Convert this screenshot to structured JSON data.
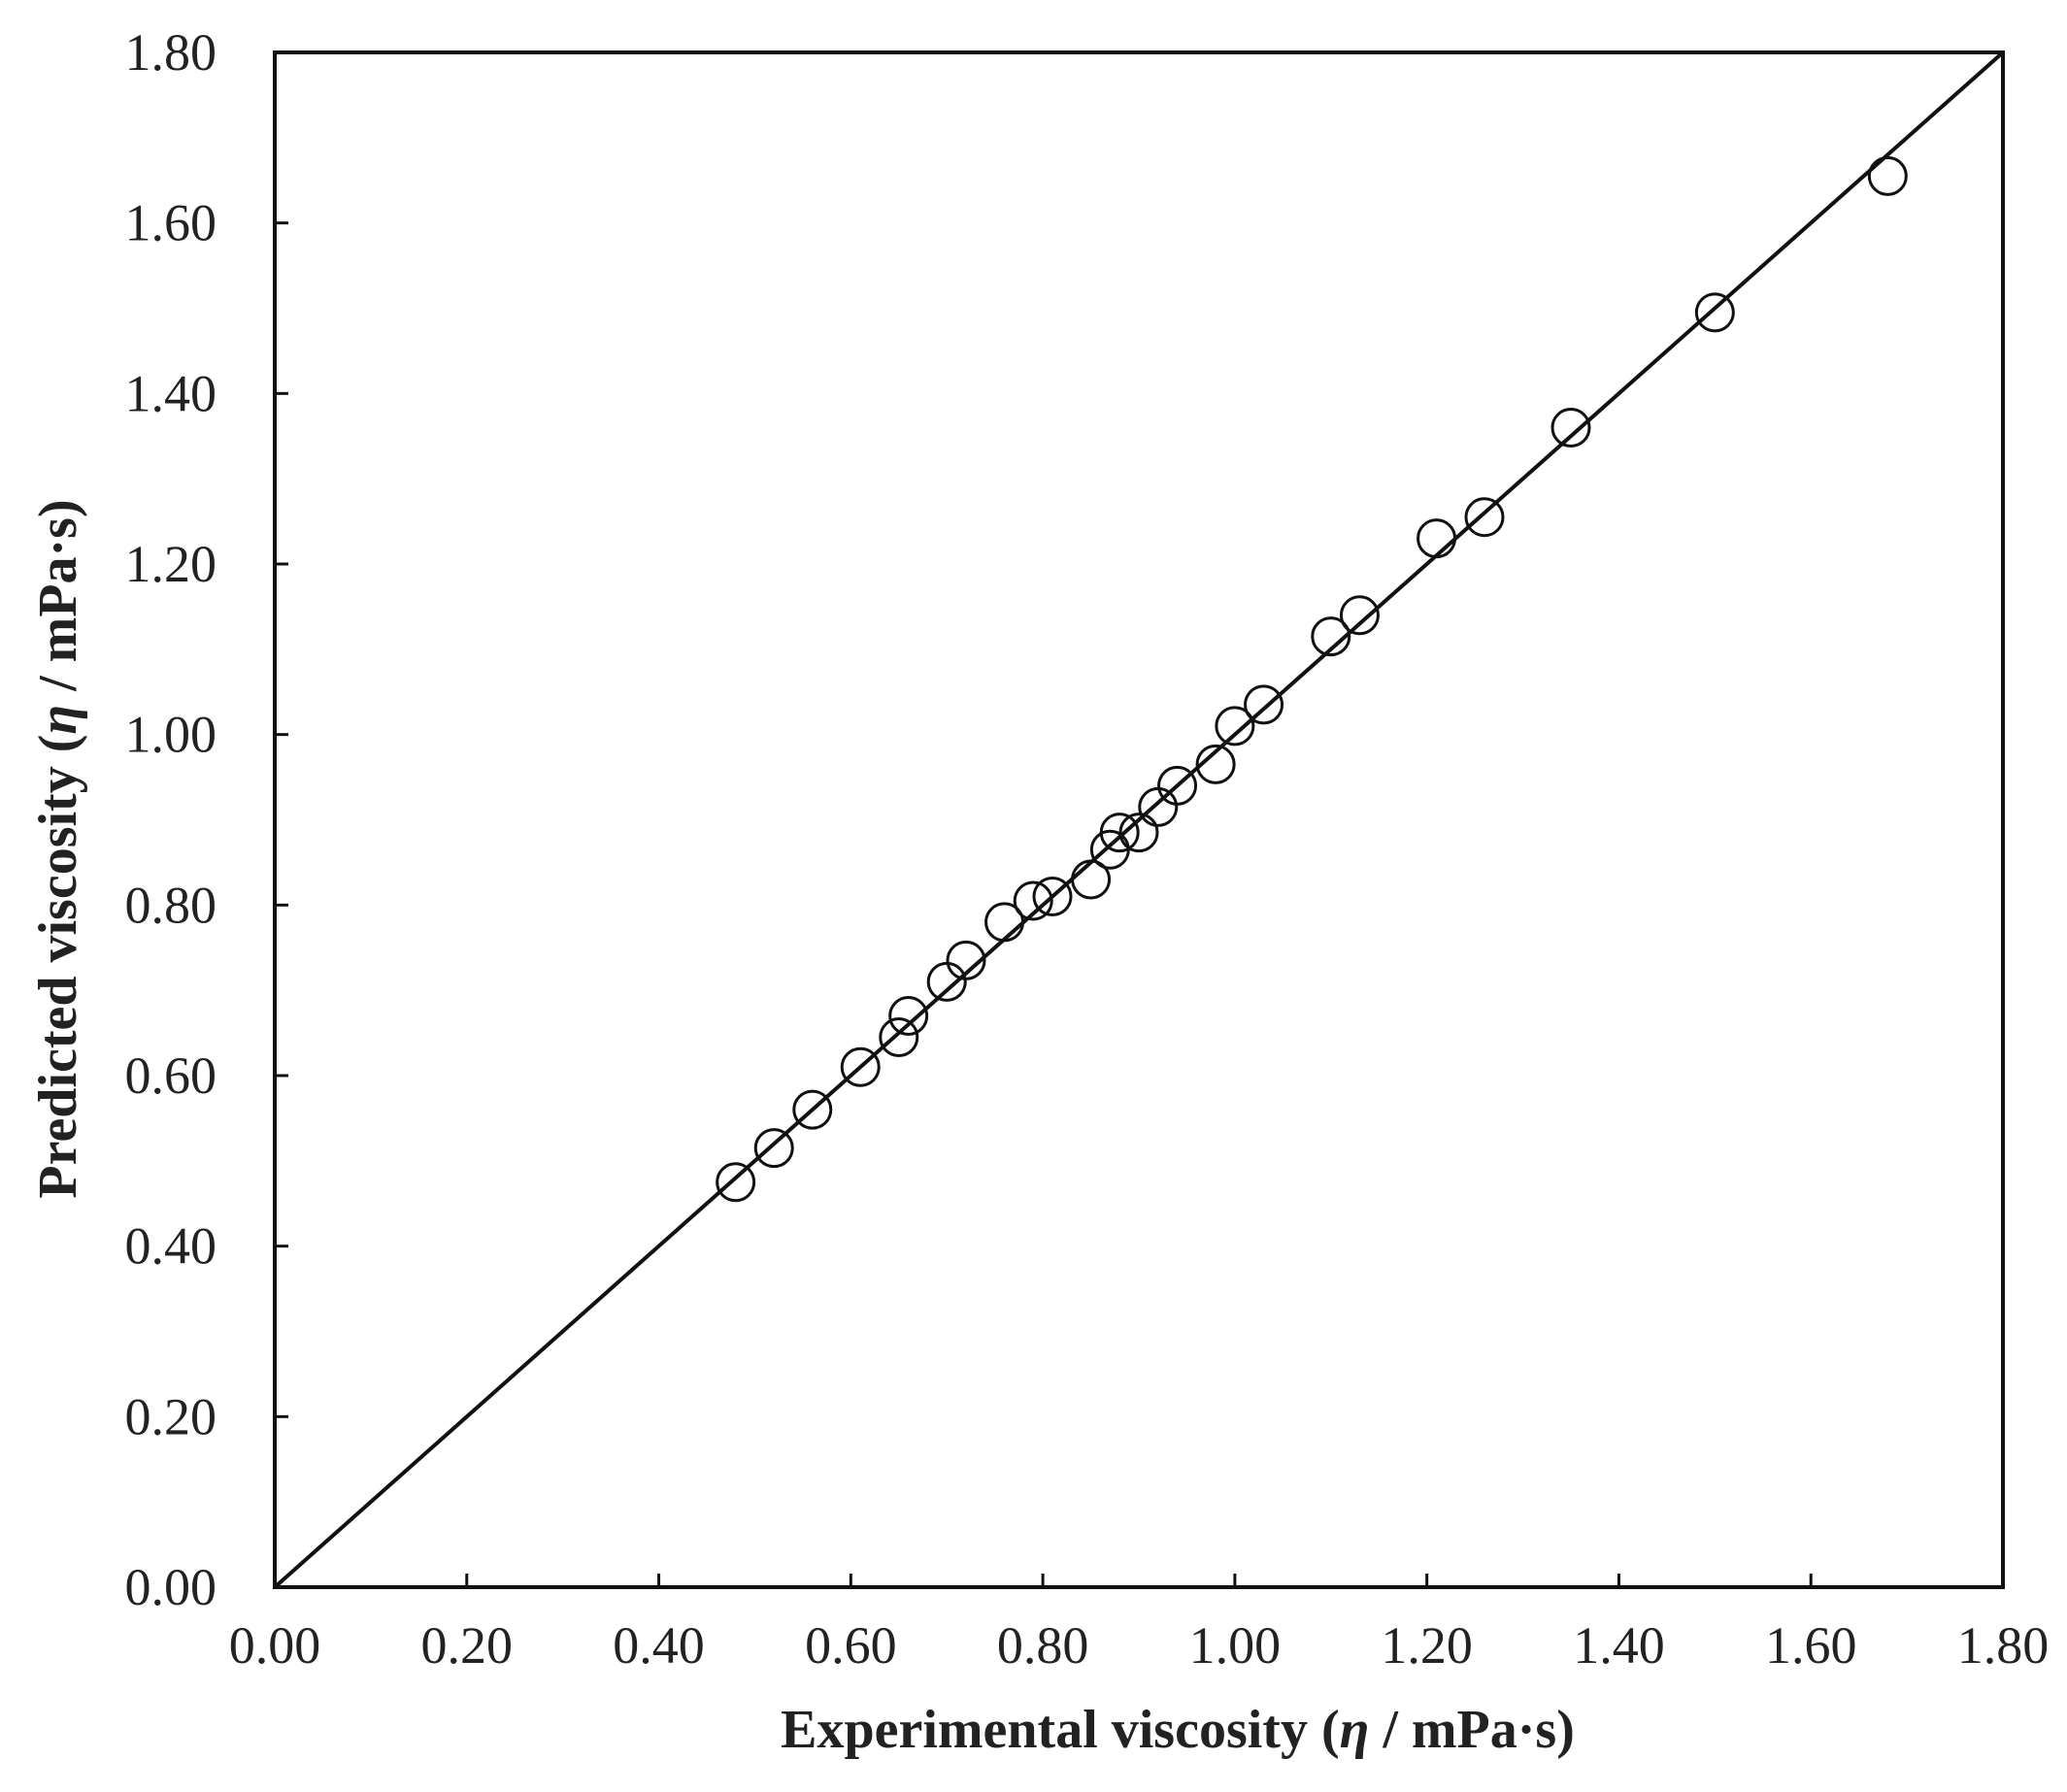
{
  "chart_data": {
    "type": "scatter",
    "title": "",
    "xlabel": {
      "pre": "Experimental  viscosity (",
      "sym": "η",
      "post": " / mPa·s)"
    },
    "ylabel": {
      "pre": "Predicted viscosity (",
      "sym": "η",
      "post": " / mPa·s)"
    },
    "xlim": [
      0,
      1.8
    ],
    "ylim": [
      0,
      1.8
    ],
    "xticks": [
      "0.00",
      "0.20",
      "0.40",
      "0.60",
      "0.80",
      "1.00",
      "1.20",
      "1.40",
      "1.60",
      "1.80"
    ],
    "yticks": [
      "0.00",
      "0.20",
      "0.40",
      "0.60",
      "0.80",
      "1.00",
      "1.20",
      "1.40",
      "1.60",
      "1.80"
    ],
    "grid": false,
    "reference_line": {
      "from": [
        0,
        0
      ],
      "to": [
        1.8,
        1.8
      ]
    },
    "points": [
      {
        "x": 0.48,
        "y": 0.475
      },
      {
        "x": 0.52,
        "y": 0.515
      },
      {
        "x": 0.56,
        "y": 0.56
      },
      {
        "x": 0.61,
        "y": 0.61
      },
      {
        "x": 0.65,
        "y": 0.645
      },
      {
        "x": 0.66,
        "y": 0.67
      },
      {
        "x": 0.7,
        "y": 0.71
      },
      {
        "x": 0.72,
        "y": 0.735
      },
      {
        "x": 0.76,
        "y": 0.78
      },
      {
        "x": 0.79,
        "y": 0.805
      },
      {
        "x": 0.81,
        "y": 0.81
      },
      {
        "x": 0.85,
        "y": 0.83
      },
      {
        "x": 0.87,
        "y": 0.865
      },
      {
        "x": 0.88,
        "y": 0.885
      },
      {
        "x": 0.9,
        "y": 0.885
      },
      {
        "x": 0.92,
        "y": 0.915
      },
      {
        "x": 0.94,
        "y": 0.94
      },
      {
        "x": 0.98,
        "y": 0.965
      },
      {
        "x": 1.0,
        "y": 1.01
      },
      {
        "x": 1.03,
        "y": 1.035
      },
      {
        "x": 1.1,
        "y": 1.115
      },
      {
        "x": 1.13,
        "y": 1.14
      },
      {
        "x": 1.21,
        "y": 1.23
      },
      {
        "x": 1.26,
        "y": 1.255
      },
      {
        "x": 1.35,
        "y": 1.36
      },
      {
        "x": 1.5,
        "y": 1.495
      },
      {
        "x": 1.68,
        "y": 1.655
      }
    ]
  }
}
